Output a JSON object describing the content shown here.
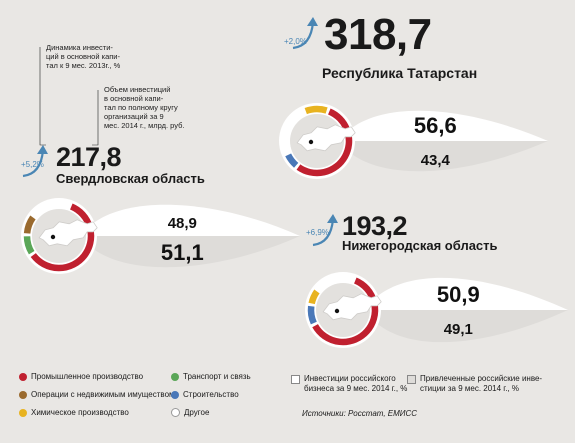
{
  "annotations": {
    "dynamics_note": "Динамика инвести-\nций в основной капи-\nтал к 9 мес. 2013г., %",
    "volume_note": "Объем инвестиций\nв основной капи-\nтал по полному кругу\nорганизаций за 9\nмес. 2014 г., млрд. руб."
  },
  "colors": {
    "industrial": "#c0202f",
    "real_estate": "#9a6a2e",
    "chemical": "#e8b320",
    "transport": "#5aa657",
    "construction": "#4a78b8",
    "other": "#ffffff",
    "growth_arrow": "#4a86b4"
  },
  "legend": {
    "items": [
      {
        "label": "Промышленное производство",
        "color_key": "industrial"
      },
      {
        "label": "Операции с недвижимым имуществом",
        "color_key": "real_estate"
      },
      {
        "label": "Химическое производство",
        "color_key": "chemical"
      },
      {
        "label": "Транспорт и связь",
        "color_key": "transport"
      },
      {
        "label": "Строительство",
        "color_key": "construction"
      },
      {
        "label": "Другое",
        "color_key": "other"
      }
    ],
    "share_items": [
      {
        "label": "Инвестиции российского\nбизнеса за 9 мес. 2014 г., %",
        "fill": "#ffffff"
      },
      {
        "label": "Привлеченные российские инве-\nстиции за 9 мес. 2014 г., %",
        "fill": "#dedcd9"
      }
    ]
  },
  "source": "Источники: Росстат, ЕМИСС",
  "chart_data": [
    {
      "type": "pie",
      "region": "Республика Татарстан",
      "investment_total": "318,7",
      "growth": "+2,0%",
      "shares": {
        "russian_business": "56,6",
        "attracted_russian": "43,4"
      },
      "sectors": [
        {
          "sector": "Промышленное производство",
          "value": 55
        },
        {
          "sector": "Строительство",
          "value": 8
        },
        {
          "sector": "Другое",
          "value": 25
        },
        {
          "sector": "Химическое производство",
          "value": 12
        }
      ]
    },
    {
      "type": "pie",
      "region": "Свердловская область",
      "investment_total": "217,8",
      "growth": "+5,2%",
      "shares": {
        "russian_business": "48,9",
        "attracted_russian": "51,1"
      },
      "sectors": [
        {
          "sector": "Промышленное производство",
          "value": 60
        },
        {
          "sector": "Транспорт и связь",
          "value": 10
        },
        {
          "sector": "Операции с недвижимым имуществом",
          "value": 10
        },
        {
          "sector": "Другое",
          "value": 20
        }
      ]
    },
    {
      "type": "pie",
      "region": "Нижегородская область",
      "investment_total": "193,2",
      "growth": "+6,9%",
      "shares": {
        "russian_business": "50,9",
        "attracted_russian": "49,1"
      },
      "sectors": [
        {
          "sector": "Промышленное производство",
          "value": 62
        },
        {
          "sector": "Строительство",
          "value": 10
        },
        {
          "sector": "Химическое производство",
          "value": 8
        },
        {
          "sector": "Другое",
          "value": 20
        }
      ]
    }
  ]
}
